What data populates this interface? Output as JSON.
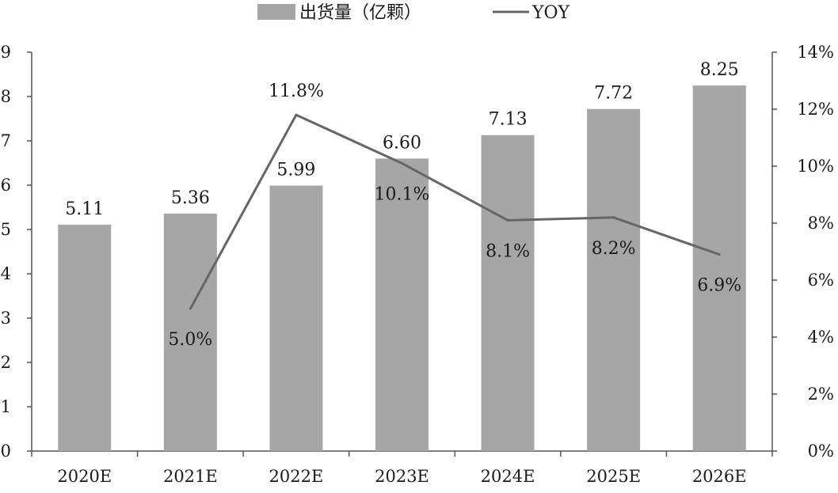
{
  "chart_data": {
    "type": "bar",
    "categories": [
      "2020E",
      "2021E",
      "2022E",
      "2023E",
      "2024E",
      "2025E",
      "2026E"
    ],
    "series": [
      {
        "name": "出货量（亿颗）",
        "type": "bar",
        "axis": "left",
        "values": [
          5.11,
          5.36,
          5.99,
          6.6,
          7.13,
          7.72,
          8.25
        ],
        "labels": [
          "5.11",
          "5.36",
          "5.99",
          "6.60",
          "7.13",
          "7.72",
          "8.25"
        ],
        "color": "#a6a6a6"
      },
      {
        "name": "YOY",
        "type": "line",
        "axis": "right",
        "values": [
          null,
          5.0,
          11.8,
          10.1,
          8.1,
          8.2,
          6.9
        ],
        "labels": [
          "",
          "5.0%",
          "11.8%",
          "10.1%",
          "8.1%",
          "8.2%",
          "6.9%"
        ],
        "color": "#666666"
      }
    ],
    "y_left": {
      "range": [
        0,
        9
      ],
      "ticks": [
        "0",
        "1",
        "2",
        "3",
        "4",
        "5",
        "6",
        "7",
        "8",
        "9"
      ]
    },
    "y_right": {
      "range": [
        0,
        14
      ],
      "ticks": [
        "0%",
        "2%",
        "4%",
        "6%",
        "8%",
        "10%",
        "12%",
        "14%"
      ]
    },
    "grid": false,
    "legend": "top-center"
  }
}
